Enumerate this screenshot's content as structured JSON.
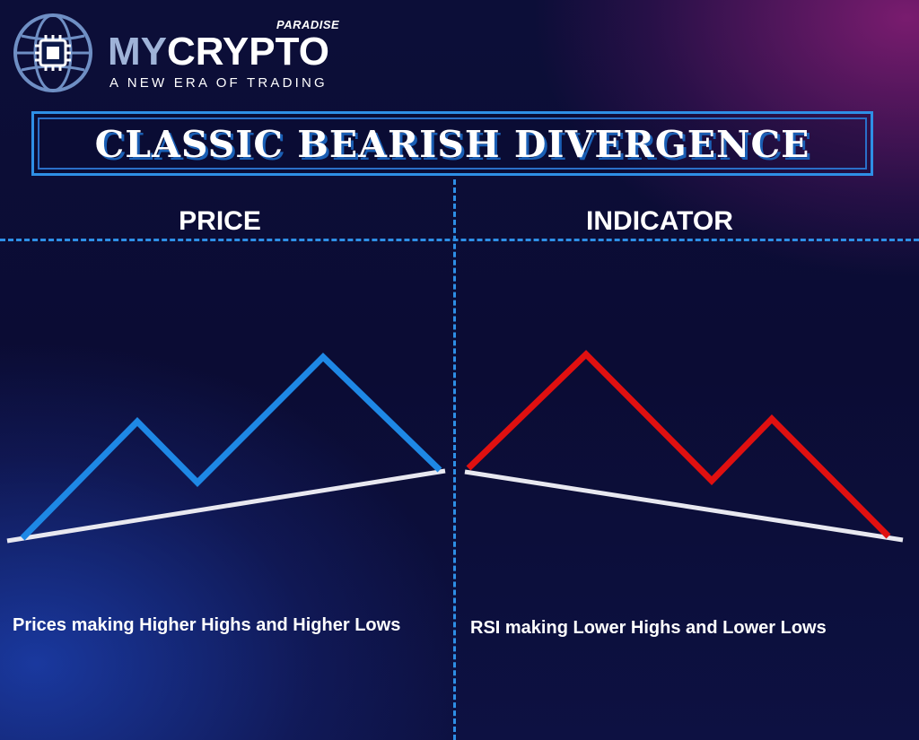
{
  "logo": {
    "paradise": "PARADISE",
    "name_part1": "MY",
    "name_part2": "CRYPTO",
    "tagline": "A NEW ERA OF TRADING"
  },
  "title": "CLASSIC BEARISH DIVERGENCE",
  "panels": {
    "price": {
      "label": "PRICE",
      "caption": "Prices making Higher Highs and Higher Lows",
      "line_color": "#1e88e5"
    },
    "indicator": {
      "label": "INDICATOR",
      "caption": "RSI making Lower Highs and Lower Lows",
      "line_color": "#e01010"
    }
  },
  "colors": {
    "divider": "#2e8fe6",
    "trendline": "#e8e8f0",
    "background": "#0d0f3a",
    "accent_magenta": "#8c1e78"
  }
}
